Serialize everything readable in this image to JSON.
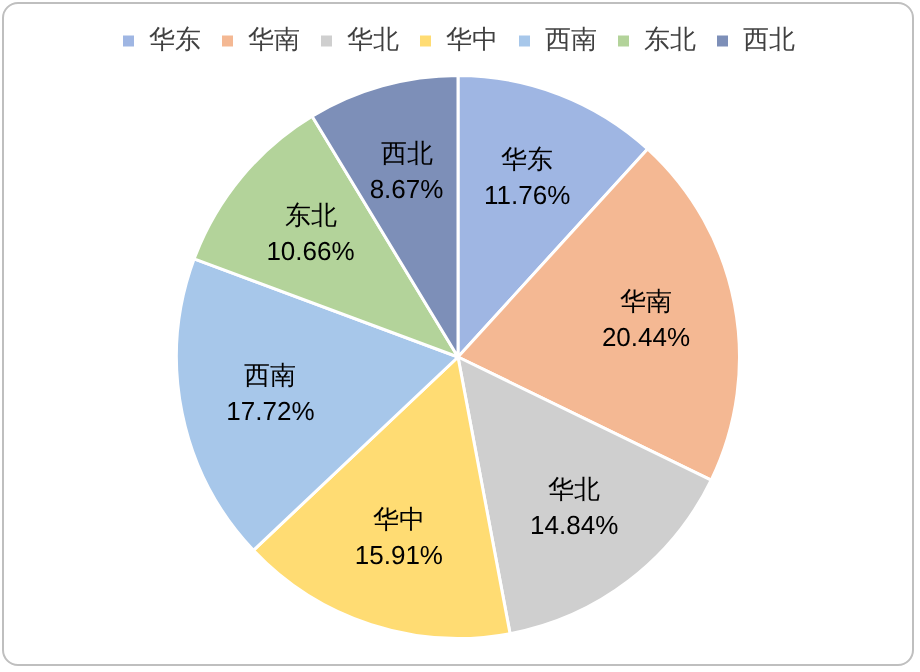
{
  "chart_data": {
    "type": "pie",
    "categories": [
      "华东",
      "华南",
      "华北",
      "华中",
      "西南",
      "东北",
      "西北"
    ],
    "values": [
      11.76,
      20.44,
      14.84,
      15.91,
      17.72,
      10.66,
      8.67
    ],
    "value_labels": [
      "11.76%",
      "20.44%",
      "14.84%",
      "15.91%",
      "17.72%",
      "10.66%",
      "8.67%"
    ],
    "colors": [
      "#9fb6e3",
      "#f4b893",
      "#cfcfcf",
      "#ffdc73",
      "#a7c7ea",
      "#b3d39a",
      "#7d8fb8"
    ],
    "legend": "top"
  }
}
